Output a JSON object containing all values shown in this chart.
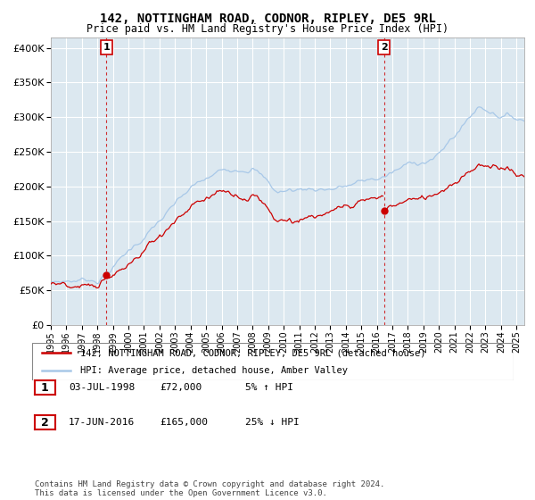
{
  "title": "142, NOTTINGHAM ROAD, CODNOR, RIPLEY, DE5 9RL",
  "subtitle": "Price paid vs. HM Land Registry's House Price Index (HPI)",
  "ytick_values": [
    0,
    50000,
    100000,
    150000,
    200000,
    250000,
    300000,
    350000,
    400000
  ],
  "ylim": [
    0,
    415000
  ],
  "xlim_start": 1995.0,
  "xlim_end": 2025.5,
  "sale1_x": 1998.58,
  "sale1_y": 72000,
  "sale1_label": "1",
  "sale2_x": 2016.46,
  "sale2_y": 165000,
  "sale2_label": "2",
  "hpi_color": "#a8c8e8",
  "price_color": "#cc0000",
  "bg_color": "#dce8f0",
  "grid_color": "#ffffff",
  "legend_label_price": "142, NOTTINGHAM ROAD, CODNOR, RIPLEY, DE5 9RL (detached house)",
  "legend_label_hpi": "HPI: Average price, detached house, Amber Valley",
  "note1_box": "1",
  "note1_date": "03-JUL-1998",
  "note1_price": "£72,000",
  "note1_pct": "5% ↑ HPI",
  "note2_box": "2",
  "note2_date": "17-JUN-2016",
  "note2_price": "£165,000",
  "note2_pct": "25% ↓ HPI",
  "footer": "Contains HM Land Registry data © Crown copyright and database right 2024.\nThis data is licensed under the Open Government Licence v3.0."
}
